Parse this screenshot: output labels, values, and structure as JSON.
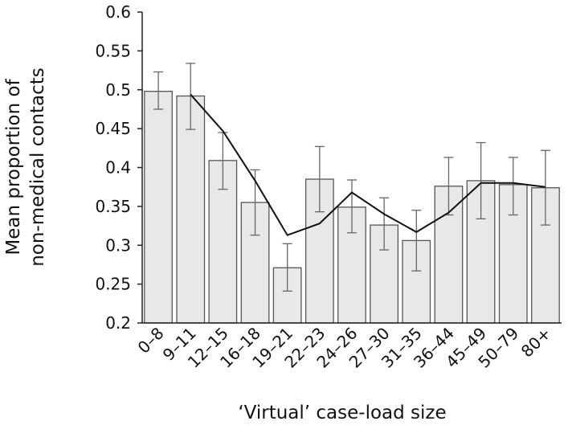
{
  "chart_data": {
    "type": "bar",
    "title": "",
    "xlabel": "‘Virtual’ case-load size",
    "ylabel_lines": [
      "Mean proportion of",
      "non-medical contacts"
    ],
    "ylim": [
      0.2,
      0.6
    ],
    "yticks": [
      "0.2",
      "0.25",
      "0.3",
      "0.35",
      "0.4",
      "0.45",
      "0.5",
      "0.55",
      "0.6"
    ],
    "categories": [
      "0–8",
      "9–11",
      "12–15",
      "16–18",
      "19–21",
      "22–23",
      "24–26",
      "27–30",
      "31–35",
      "36–44",
      "45–49",
      "50–79",
      "80+"
    ],
    "values": [
      0.498,
      0.492,
      0.409,
      0.355,
      0.271,
      0.385,
      0.349,
      0.326,
      0.306,
      0.376,
      0.383,
      0.378,
      0.374
    ],
    "error_upper": [
      0.523,
      0.534,
      0.445,
      0.397,
      0.302,
      0.427,
      0.384,
      0.361,
      0.345,
      0.413,
      0.432,
      0.413,
      0.422
    ],
    "error_lower": [
      0.475,
      0.449,
      0.372,
      0.313,
      0.241,
      0.343,
      0.316,
      0.294,
      0.267,
      0.339,
      0.334,
      0.339,
      0.326
    ],
    "trend_line": [
      null,
      0.494,
      0.447,
      0.383,
      0.313,
      0.328,
      0.368,
      0.34,
      0.317,
      0.342,
      0.38,
      0.38,
      0.375
    ],
    "grid": false,
    "legend": "none",
    "colors": {
      "bar_fill": "#e8e8e8",
      "bar_stroke": "#555555",
      "error_bar": "#666666",
      "trend_line": "#111111",
      "axis": "#222222"
    }
  }
}
